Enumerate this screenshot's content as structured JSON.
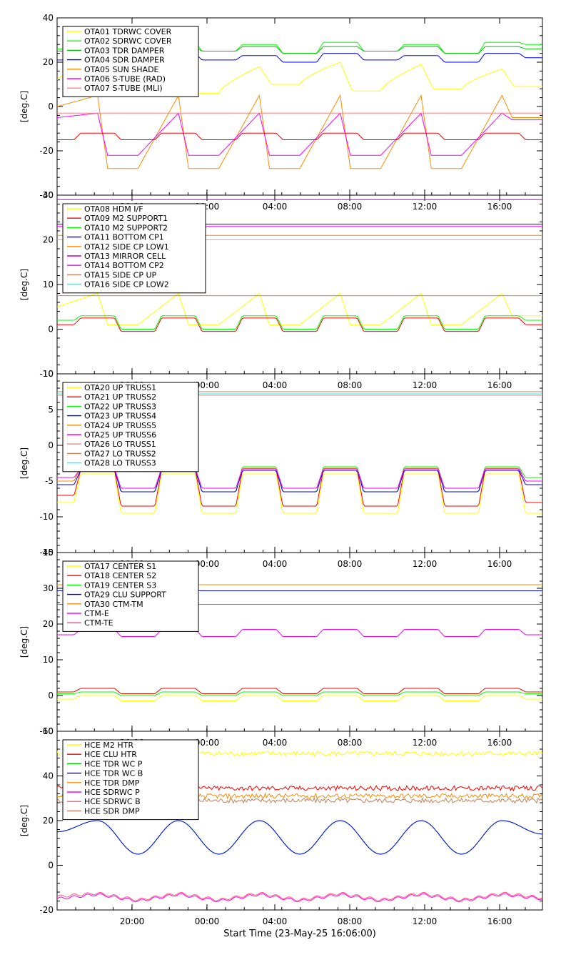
{
  "footer_label": "Start Time (23-May-25 16:06:00)",
  "x_ticks": [
    "20:00",
    "00:00",
    "04:00",
    "08:00",
    "12:00",
    "16:00"
  ],
  "chart_data": [
    {
      "type": "line",
      "ylabel": "[deg.C]",
      "ylim": [
        -40,
        40
      ],
      "yticks": [
        -40,
        -20,
        0,
        20,
        40
      ],
      "series": [
        {
          "name": "OTA01 TDRWC COVER",
          "color": "#ffff00",
          "pattern": "yellow-wide",
          "values": [
            12.0,
            20.0,
            8.0,
            19.0,
            6.0,
            18.0,
            10.0,
            20.0,
            7.0,
            19.0,
            8.0,
            17.0,
            9.0
          ]
        },
        {
          "name": "OTA02 SDRWC COVER",
          "color": "#00ff00",
          "pattern": "plateau",
          "values": [
            26.0,
            29.0,
            24.0,
            29.0,
            25.0,
            28.0,
            24.0,
            29.0,
            25.0,
            28.0,
            24.0,
            29.0,
            28.0
          ]
        },
        {
          "name": "OTA03 TDR DAMPER",
          "color": "#00c000",
          "pattern": "plateau",
          "values": [
            25.0,
            27.0,
            24.0,
            27.0,
            25.0,
            27.0,
            24.0,
            27.0,
            25.0,
            27.0,
            24.0,
            27.0,
            26.0
          ]
        },
        {
          "name": "OTA04 SDR DAMPER",
          "color": "#0000ff",
          "pattern": "plateau",
          "values": [
            21.0,
            24.0,
            20.0,
            24.0,
            21.0,
            23.0,
            20.0,
            24.0,
            21.0,
            23.0,
            20.0,
            24.0,
            22.0
          ]
        },
        {
          "name": "OTA05 SUN SHADE",
          "color": "#ff8c00",
          "pattern": "sawtooth",
          "values": [
            0.0,
            5.0,
            -28.0,
            5.0,
            -28.0,
            5.0,
            -28.0,
            5.0,
            -28.0,
            5.0,
            -28.0,
            5.0,
            -5.0
          ]
        },
        {
          "name": "OTA06 S-TUBE (RAD)",
          "color": "#ff00ff",
          "pattern": "sawtooth",
          "values": [
            -5.0,
            -3.0,
            -22.0,
            -3.0,
            -22.0,
            -3.0,
            -22.0,
            -3.0,
            -22.0,
            -3.0,
            -22.0,
            -3.0,
            -6.0
          ]
        },
        {
          "name": "OTA07 S-TUBE (MLI)",
          "color": "#ff8080",
          "pattern": "flat",
          "values": [
            -3.0,
            -3.0,
            -3.0,
            -3.0,
            -3.0,
            -3.0,
            -3.0,
            -3.0,
            -3.0,
            -3.0,
            -3.0,
            -3.0,
            -3.0
          ]
        },
        {
          "name": "",
          "color": "#ff0000",
          "pattern": "plateau",
          "values": [
            -15.0,
            -12.0,
            -15.0,
            -12.0,
            -15.0,
            -12.0,
            -15.0,
            -12.0,
            -15.0,
            -12.0,
            -15.0,
            -12.0,
            -15.0
          ]
        }
      ]
    },
    {
      "type": "line",
      "ylabel": "[deg.C]",
      "ylim": [
        -10,
        30
      ],
      "yticks": [
        -10,
        0,
        10,
        20,
        30
      ],
      "series": [
        {
          "name": "OTA08 HDM I/F",
          "color": "#ffff00",
          "pattern": "sawtooth",
          "values": [
            5.0,
            8.0,
            1.0,
            8.0,
            1.0,
            8.0,
            1.0,
            8.0,
            1.0,
            8.0,
            1.0,
            8.0,
            3.0
          ]
        },
        {
          "name": "OTA09 M2 SUPPORT1",
          "color": "#ff0000",
          "pattern": "plateau",
          "values": [
            1.0,
            2.5,
            -0.5,
            2.5,
            -0.5,
            2.5,
            -0.5,
            2.5,
            -0.5,
            2.5,
            -0.5,
            2.5,
            1.0
          ]
        },
        {
          "name": "OTA10 M2 SUPPORT2",
          "color": "#00ff00",
          "pattern": "plateau",
          "values": [
            2.0,
            3.0,
            0.0,
            3.0,
            0.0,
            3.0,
            0.0,
            3.0,
            0.0,
            3.0,
            0.0,
            3.0,
            2.0
          ]
        },
        {
          "name": "OTA11 BOTTOM CP1",
          "color": "#0000ff",
          "pattern": "flat",
          "values": [
            23.5,
            23.5,
            23.5,
            23.5,
            23.5,
            23.5,
            23.5,
            23.5,
            23.5,
            23.5,
            23.5,
            23.5,
            23.5
          ]
        },
        {
          "name": "OTA12 SIDE CP LOW1",
          "color": "#ff8c00",
          "pattern": "flat",
          "values": [
            21.0,
            21.0,
            21.0,
            21.0,
            21.0,
            21.0,
            21.0,
            21.0,
            21.0,
            21.0,
            21.0,
            21.0,
            21.0
          ]
        },
        {
          "name": "OTA13 MIRROR CELL",
          "color": "#c000c0",
          "pattern": "flat",
          "values": [
            29.0,
            29.0,
            29.0,
            29.0,
            29.0,
            29.0,
            29.0,
            29.0,
            29.0,
            29.0,
            29.0,
            29.0,
            29.0
          ]
        },
        {
          "name": "OTA14 BOTTOM CP2",
          "color": "#ff00ff",
          "pattern": "flat",
          "values": [
            23.0,
            23.0,
            23.0,
            23.0,
            23.0,
            23.0,
            23.0,
            23.0,
            23.0,
            23.0,
            23.0,
            23.0,
            23.0
          ]
        },
        {
          "name": "OTA15 SIDE CP UP",
          "color": "#c08060",
          "pattern": "flat",
          "values": [
            7.5,
            7.5,
            7.5,
            7.5,
            7.5,
            7.5,
            7.5,
            7.5,
            7.5,
            7.5,
            7.5,
            7.5,
            7.5
          ]
        },
        {
          "name": "OTA16 SIDE CP LOW2",
          "color": "#00ffff",
          "pattern": "flat",
          "values": [
            20.0,
            20.0,
            20.0,
            20.0,
            20.0,
            20.0,
            20.0,
            20.0,
            20.0,
            20.0,
            20.0,
            20.0,
            20.0
          ]
        }
      ]
    },
    {
      "type": "line",
      "ylabel": "[deg.C]",
      "ylim": [
        -15,
        10
      ],
      "yticks": [
        -15,
        -10,
        -5,
        0,
        5,
        10
      ],
      "series": [
        {
          "name": "OTA20 UP TRUSS1",
          "color": "#ffff00",
          "pattern": "plateau",
          "values": [
            -8.0,
            -4.0,
            -9.5,
            -4.0,
            -9.5,
            -4.0,
            -9.5,
            -4.0,
            -9.5,
            -4.0,
            -9.5,
            -4.0,
            -9.5
          ]
        },
        {
          "name": "OTA21 UP TRUSS2",
          "color": "#ff0000",
          "pattern": "plateau",
          "values": [
            -7.0,
            -3.5,
            -8.5,
            -3.5,
            -8.5,
            -3.5,
            -8.5,
            -3.5,
            -8.5,
            -3.5,
            -8.5,
            -3.5,
            -8.0
          ]
        },
        {
          "name": "OTA22 UP TRUSS3",
          "color": "#00ff00",
          "pattern": "plateau",
          "values": [
            -5.0,
            -3.0,
            -6.5,
            -3.0,
            -6.5,
            -3.0,
            -6.5,
            -3.0,
            -6.5,
            -3.0,
            -6.5,
            -3.0,
            -4.5
          ]
        },
        {
          "name": "OTA23 UP TRUSS4",
          "color": "#0000ff",
          "pattern": "plateau",
          "values": [
            -5.5,
            -3.5,
            -6.5,
            -3.5,
            -6.5,
            -3.5,
            -6.5,
            -3.5,
            -6.5,
            -3.5,
            -6.5,
            -3.5,
            -5.5
          ]
        },
        {
          "name": "OTA24 UP TRUSS5",
          "color": "#ff8c00",
          "pattern": "plateau",
          "values": [
            -5.0,
            -3.2,
            -6.0,
            -3.2,
            -6.0,
            -3.2,
            -6.0,
            -3.2,
            -6.0,
            -3.2,
            -6.0,
            -3.2,
            -5.0
          ]
        },
        {
          "name": "OTA25 UP TRUSS6",
          "color": "#ff00ff",
          "pattern": "plateau",
          "values": [
            -4.5,
            -3.3,
            -6.0,
            -3.3,
            -6.0,
            -3.3,
            -6.0,
            -3.3,
            -6.0,
            -3.3,
            -6.0,
            -3.3,
            -5.0
          ]
        },
        {
          "name": "OTA26 LO TRUSS1",
          "color": "#ff8080",
          "pattern": "flat",
          "values": [
            7.0,
            7.0,
            7.0,
            7.0,
            7.0,
            7.0,
            7.0,
            7.0,
            7.0,
            7.0,
            7.0,
            7.0,
            7.0
          ]
        },
        {
          "name": "OTA27 LO TRUSS2",
          "color": "#c08060",
          "pattern": "flat",
          "values": [
            7.5,
            7.5,
            7.5,
            7.5,
            7.5,
            7.5,
            7.5,
            7.5,
            7.5,
            7.5,
            7.5,
            7.5,
            7.5
          ]
        },
        {
          "name": "OTA28 LO TRUSS3",
          "color": "#00ffff",
          "pattern": "flat",
          "values": [
            7.2,
            7.2,
            7.2,
            7.2,
            7.2,
            7.2,
            7.2,
            7.2,
            7.2,
            7.2,
            7.2,
            7.2,
            7.2
          ]
        }
      ]
    },
    {
      "type": "line",
      "ylabel": "[deg.C]",
      "ylim": [
        -10,
        40
      ],
      "yticks": [
        -10,
        0,
        10,
        20,
        30,
        40
      ],
      "series": [
        {
          "name": "OTA17 CENTER S1",
          "color": "#ffff00",
          "pattern": "plateau",
          "values": [
            -1.0,
            0.0,
            -1.5,
            0.0,
            -1.5,
            0.0,
            -1.5,
            0.0,
            -1.5,
            0.0,
            -1.5,
            0.0,
            -1.0
          ]
        },
        {
          "name": "OTA18 CENTER S2",
          "color": "#ff0000",
          "pattern": "plateau",
          "values": [
            1.0,
            2.0,
            0.5,
            2.0,
            0.5,
            2.0,
            0.5,
            2.0,
            0.5,
            2.0,
            0.5,
            2.0,
            1.0
          ]
        },
        {
          "name": "OTA19 CENTER S3",
          "color": "#00ff00",
          "pattern": "plateau",
          "values": [
            0.5,
            1.0,
            0.0,
            1.0,
            0.0,
            1.0,
            0.0,
            1.0,
            0.0,
            1.0,
            0.0,
            1.0,
            0.5
          ]
        },
        {
          "name": "OTA29 CLU SUPPORT",
          "color": "#0000ff",
          "pattern": "flat",
          "values": [
            29.3,
            29.3,
            29.3,
            29.3,
            29.3,
            29.3,
            29.3,
            29.3,
            29.3,
            29.3,
            29.3,
            29.3,
            29.3
          ]
        },
        {
          "name": "OTA30 CTM-TM",
          "color": "#ff8c00",
          "pattern": "flat",
          "values": [
            31.0,
            31.0,
            31.0,
            31.0,
            31.0,
            31.0,
            31.0,
            31.0,
            31.0,
            31.0,
            31.0,
            31.0,
            31.0
          ]
        },
        {
          "name": "CTM-E",
          "color": "#ff00ff",
          "pattern": "plateau",
          "values": [
            17.0,
            18.5,
            16.5,
            18.5,
            16.5,
            18.5,
            16.5,
            18.5,
            16.5,
            18.5,
            16.5,
            18.5,
            17.0
          ]
        },
        {
          "name": "CTM-TE",
          "color": "#ff4080",
          "pattern": "flat",
          "values": [
            25.5,
            25.5,
            25.5,
            25.5,
            25.5,
            25.5,
            25.5,
            25.5,
            25.5,
            25.5,
            25.5,
            25.5,
            25.5
          ]
        }
      ]
    },
    {
      "type": "line",
      "ylabel": "[deg.C]",
      "ylim": [
        -20,
        60
      ],
      "yticks": [
        -20,
        0,
        20,
        40,
        60
      ],
      "series": [
        {
          "name": "HCE M2 HTR",
          "color": "#ffff00",
          "pattern": "noisy",
          "values": [
            50.0,
            50.0,
            50.0,
            50.0,
            50.0,
            50.0,
            50.0,
            50.0,
            50.0,
            50.0,
            50.0,
            50.0,
            50.0
          ]
        },
        {
          "name": "HCE CLU HTR",
          "color": "#ff0000",
          "pattern": "noisy",
          "values": [
            34.5,
            34.5,
            34.5,
            34.5,
            34.5,
            34.5,
            34.5,
            34.5,
            34.5,
            34.5,
            34.5,
            34.5,
            34.5
          ]
        },
        {
          "name": "HCE TDR WC P",
          "color": "#00c000",
          "pattern": "sine",
          "values": [
            15.0,
            20.0,
            5.0,
            20.0,
            5.0,
            20.0,
            5.0,
            20.0,
            5.0,
            20.0,
            5.0,
            20.0,
            14.0
          ]
        },
        {
          "name": "HCE TDR WC B",
          "color": "#0000ff",
          "pattern": "sine",
          "values": [
            15.0,
            20.0,
            5.0,
            20.0,
            5.0,
            20.0,
            5.0,
            20.0,
            5.0,
            20.0,
            5.0,
            20.0,
            14.0
          ]
        },
        {
          "name": "HCE TDR DMP",
          "color": "#ff8c00",
          "pattern": "noisy",
          "values": [
            31.0,
            31.0,
            31.0,
            31.0,
            31.0,
            31.0,
            31.0,
            31.0,
            31.0,
            31.0,
            31.0,
            31.0,
            31.0
          ]
        },
        {
          "name": "HCE SDRWC P",
          "color": "#ff00ff",
          "pattern": "wobble",
          "values": [
            -15.0,
            -13.0,
            -16.0,
            -13.0,
            -16.0,
            -13.0,
            -16.0,
            -13.0,
            -16.0,
            -13.0,
            -16.0,
            -13.0,
            -15.0
          ]
        },
        {
          "name": "HCE SDRWC B",
          "color": "#ff6080",
          "pattern": "wobble",
          "values": [
            -14.0,
            -12.5,
            -15.5,
            -12.5,
            -15.5,
            -12.5,
            -15.5,
            -12.5,
            -15.5,
            -12.5,
            -15.5,
            -12.5,
            -14.5
          ]
        },
        {
          "name": "HCE SDR DMP",
          "color": "#c08060",
          "pattern": "noisy",
          "values": [
            29.0,
            29.0,
            29.0,
            29.0,
            29.0,
            29.0,
            29.0,
            29.0,
            29.0,
            29.0,
            29.0,
            29.0,
            29.0
          ]
        }
      ]
    }
  ]
}
